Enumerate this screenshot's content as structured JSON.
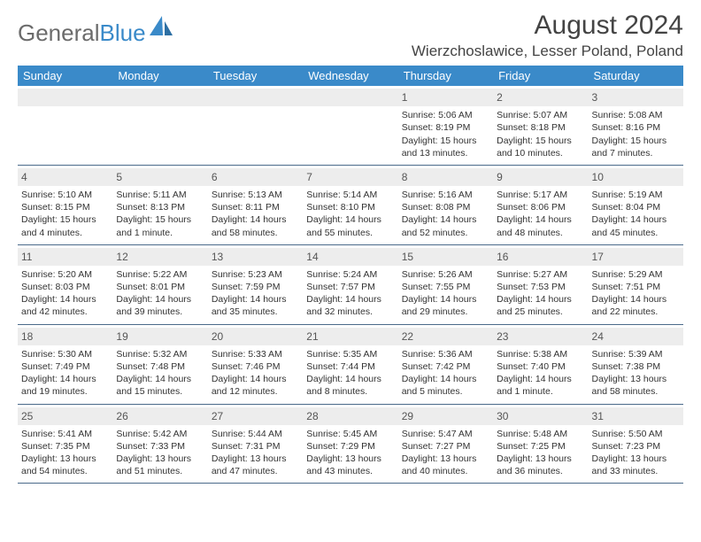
{
  "logo": {
    "text_gray": "General",
    "text_blue": "Blue"
  },
  "header": {
    "month_year": "August 2024",
    "location": "Wierzchoslawice, Lesser Poland, Poland"
  },
  "colors": {
    "header_bg": "#3a8ac9",
    "header_fg": "#ffffff",
    "logo_gray": "#6b6b6b",
    "logo_blue": "#3a8ac9",
    "daynum_bg": "#ededed",
    "rule": "#4a6a8a"
  },
  "weekdays": [
    "Sunday",
    "Monday",
    "Tuesday",
    "Wednesday",
    "Thursday",
    "Friday",
    "Saturday"
  ],
  "weeks": [
    [
      null,
      null,
      null,
      null,
      {
        "num": "1",
        "sunrise": "5:06 AM",
        "sunset": "8:19 PM",
        "daylight": "15 hours and 13 minutes."
      },
      {
        "num": "2",
        "sunrise": "5:07 AM",
        "sunset": "8:18 PM",
        "daylight": "15 hours and 10 minutes."
      },
      {
        "num": "3",
        "sunrise": "5:08 AM",
        "sunset": "8:16 PM",
        "daylight": "15 hours and 7 minutes."
      }
    ],
    [
      {
        "num": "4",
        "sunrise": "5:10 AM",
        "sunset": "8:15 PM",
        "daylight": "15 hours and 4 minutes."
      },
      {
        "num": "5",
        "sunrise": "5:11 AM",
        "sunset": "8:13 PM",
        "daylight": "15 hours and 1 minute."
      },
      {
        "num": "6",
        "sunrise": "5:13 AM",
        "sunset": "8:11 PM",
        "daylight": "14 hours and 58 minutes."
      },
      {
        "num": "7",
        "sunrise": "5:14 AM",
        "sunset": "8:10 PM",
        "daylight": "14 hours and 55 minutes."
      },
      {
        "num": "8",
        "sunrise": "5:16 AM",
        "sunset": "8:08 PM",
        "daylight": "14 hours and 52 minutes."
      },
      {
        "num": "9",
        "sunrise": "5:17 AM",
        "sunset": "8:06 PM",
        "daylight": "14 hours and 48 minutes."
      },
      {
        "num": "10",
        "sunrise": "5:19 AM",
        "sunset": "8:04 PM",
        "daylight": "14 hours and 45 minutes."
      }
    ],
    [
      {
        "num": "11",
        "sunrise": "5:20 AM",
        "sunset": "8:03 PM",
        "daylight": "14 hours and 42 minutes."
      },
      {
        "num": "12",
        "sunrise": "5:22 AM",
        "sunset": "8:01 PM",
        "daylight": "14 hours and 39 minutes."
      },
      {
        "num": "13",
        "sunrise": "5:23 AM",
        "sunset": "7:59 PM",
        "daylight": "14 hours and 35 minutes."
      },
      {
        "num": "14",
        "sunrise": "5:24 AM",
        "sunset": "7:57 PM",
        "daylight": "14 hours and 32 minutes."
      },
      {
        "num": "15",
        "sunrise": "5:26 AM",
        "sunset": "7:55 PM",
        "daylight": "14 hours and 29 minutes."
      },
      {
        "num": "16",
        "sunrise": "5:27 AM",
        "sunset": "7:53 PM",
        "daylight": "14 hours and 25 minutes."
      },
      {
        "num": "17",
        "sunrise": "5:29 AM",
        "sunset": "7:51 PM",
        "daylight": "14 hours and 22 minutes."
      }
    ],
    [
      {
        "num": "18",
        "sunrise": "5:30 AM",
        "sunset": "7:49 PM",
        "daylight": "14 hours and 19 minutes."
      },
      {
        "num": "19",
        "sunrise": "5:32 AM",
        "sunset": "7:48 PM",
        "daylight": "14 hours and 15 minutes."
      },
      {
        "num": "20",
        "sunrise": "5:33 AM",
        "sunset": "7:46 PM",
        "daylight": "14 hours and 12 minutes."
      },
      {
        "num": "21",
        "sunrise": "5:35 AM",
        "sunset": "7:44 PM",
        "daylight": "14 hours and 8 minutes."
      },
      {
        "num": "22",
        "sunrise": "5:36 AM",
        "sunset": "7:42 PM",
        "daylight": "14 hours and 5 minutes."
      },
      {
        "num": "23",
        "sunrise": "5:38 AM",
        "sunset": "7:40 PM",
        "daylight": "14 hours and 1 minute."
      },
      {
        "num": "24",
        "sunrise": "5:39 AM",
        "sunset": "7:38 PM",
        "daylight": "13 hours and 58 minutes."
      }
    ],
    [
      {
        "num": "25",
        "sunrise": "5:41 AM",
        "sunset": "7:35 PM",
        "daylight": "13 hours and 54 minutes."
      },
      {
        "num": "26",
        "sunrise": "5:42 AM",
        "sunset": "7:33 PM",
        "daylight": "13 hours and 51 minutes."
      },
      {
        "num": "27",
        "sunrise": "5:44 AM",
        "sunset": "7:31 PM",
        "daylight": "13 hours and 47 minutes."
      },
      {
        "num": "28",
        "sunrise": "5:45 AM",
        "sunset": "7:29 PM",
        "daylight": "13 hours and 43 minutes."
      },
      {
        "num": "29",
        "sunrise": "5:47 AM",
        "sunset": "7:27 PM",
        "daylight": "13 hours and 40 minutes."
      },
      {
        "num": "30",
        "sunrise": "5:48 AM",
        "sunset": "7:25 PM",
        "daylight": "13 hours and 36 minutes."
      },
      {
        "num": "31",
        "sunrise": "5:50 AM",
        "sunset": "7:23 PM",
        "daylight": "13 hours and 33 minutes."
      }
    ]
  ],
  "labels": {
    "sunrise": "Sunrise:",
    "sunset": "Sunset:",
    "daylight": "Daylight:"
  }
}
